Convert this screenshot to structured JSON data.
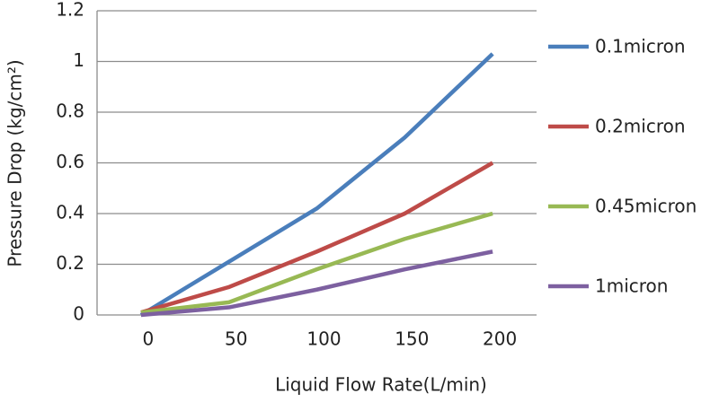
{
  "chart_data": {
    "type": "line",
    "x_label": "Liquid Flow Rate(L/min)",
    "y_label": "Pressure Drop (kg/cm²)",
    "categories": [
      "0",
      "50",
      "100",
      "150",
      "200"
    ],
    "series": [
      {
        "name": "0.1micron",
        "color": "#4a7ebb",
        "values": [
          0,
          0.21,
          0.42,
          0.7,
          1.03
        ]
      },
      {
        "name": "0.2micron",
        "color": "#be4b48",
        "values": [
          0.01,
          0.11,
          0.25,
          0.4,
          0.6
        ]
      },
      {
        "name": "0.45micron",
        "color": "#98b954",
        "values": [
          0.01,
          0.05,
          0.18,
          0.3,
          0.4
        ]
      },
      {
        "name": "1micron",
        "color": "#7d60a0",
        "values": [
          0,
          0.03,
          0.1,
          0.18,
          0.25
        ]
      }
    ],
    "ylim": [
      0,
      1.2
    ],
    "yticks": [
      0,
      0.2,
      0.4,
      0.6,
      0.8,
      1,
      1.2
    ],
    "grid": true,
    "legend": "right"
  }
}
